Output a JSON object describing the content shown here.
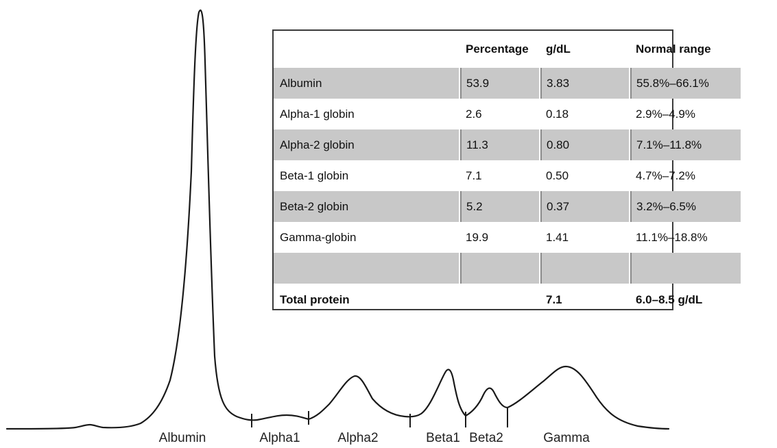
{
  "chart_data": {
    "type": "line",
    "title": "",
    "xlabel": "",
    "ylabel": "",
    "grid": false,
    "description_kind": "serum protein electrophoresis densitometry trace",
    "fractions": [
      {
        "name": "Albumin",
        "label": "Albumin",
        "peak_height": 1.0
      },
      {
        "name": "Alpha1",
        "label": "Alpha1",
        "peak_height": 0.05
      },
      {
        "name": "Alpha2",
        "label": "Alpha2",
        "peak_height": 0.21
      },
      {
        "name": "Beta1",
        "label": "Beta1",
        "peak_height": 0.23
      },
      {
        "name": "Beta2",
        "label": "Beta2",
        "peak_height": 0.13
      },
      {
        "name": "Gamma",
        "label": "Gamma",
        "peak_height": 0.22
      }
    ],
    "x_axis_labels": [
      "Albumin",
      "Alpha1",
      "Alpha2",
      "Beta1",
      "Beta2",
      "Gamma"
    ]
  },
  "table": {
    "headers": [
      "",
      "Percentage",
      "g/dL",
      "Normal range"
    ],
    "rows": [
      {
        "name": "Albumin",
        "percentage": "53.9",
        "gdl": "3.83",
        "range": "55.8%–66.1%"
      },
      {
        "name": "Alpha-1 globin",
        "percentage": "2.6",
        "gdl": "0.18",
        "range": "2.9%–4.9%"
      },
      {
        "name": "Alpha-2 globin",
        "percentage": "11.3",
        "gdl": "0.80",
        "range": "7.1%–11.8%"
      },
      {
        "name": "Beta-1 globin",
        "percentage": "7.1",
        "gdl": "0.50",
        "range": "4.7%–7.2%"
      },
      {
        "name": "Beta-2 globin",
        "percentage": "5.2",
        "gdl": "0.37",
        "range": "3.2%–6.5%"
      },
      {
        "name": "Gamma-globin",
        "percentage": "19.9",
        "gdl": "1.41",
        "range": "11.1%–18.8%"
      },
      {
        "name": "",
        "percentage": "",
        "gdl": "",
        "range": ""
      }
    ],
    "total": {
      "name": "Total protein",
      "percentage": "",
      "gdl": "7.1",
      "range": "6.0–8.5 g/dL"
    }
  },
  "colors": {
    "trace": "#1a1a1a",
    "shaded_row": "#c8c8c8",
    "border": "#3a3a3a"
  }
}
